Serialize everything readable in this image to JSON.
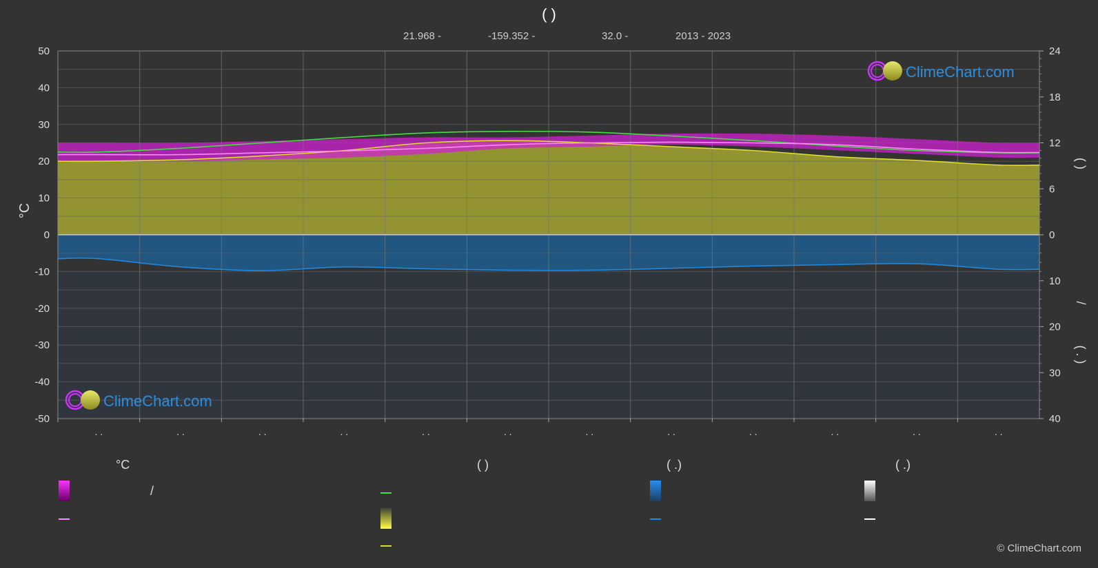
{
  "header": {
    "title": "(        )",
    "lat": "21.968 -",
    "lon": "-159.352 -",
    "elev": "32.0 -",
    "years": "2013 - 2023"
  },
  "brand": {
    "logo_text": "ClimeChart.com",
    "copyright": "© ClimeChart.com"
  },
  "legend": {
    "temp_header": "°C",
    "sun_header": "(          )",
    "rain_header": "(    .)",
    "snow_header": "(    .)",
    "temp_range_slash": "/"
  },
  "colors": {
    "background": "#333333",
    "daylight_green": "#44dd44",
    "sunshine_yellow": "#dddd33",
    "sunshine_fill": "#999933",
    "temp_range_magenta": "#d020d0",
    "temp_mean_pink": "#ff88ff",
    "rain_blue": "#2288dd",
    "snow_white": "#ffffff"
  },
  "chart_data": {
    "type": "area",
    "x_categories": [
      ". .",
      ". .",
      ". .",
      ". .",
      ". .",
      ". .",
      ". .",
      ". .",
      ". .",
      ". .",
      ". .",
      ". ."
    ],
    "left_axis": {
      "label": "°C",
      "ylim": [
        -50,
        50
      ],
      "ticks": [
        50,
        40,
        30,
        20,
        10,
        0,
        -10,
        -20,
        -30,
        -40,
        -50
      ]
    },
    "right_axis_top": {
      "ylim": [
        0,
        24
      ],
      "ticks": [
        24,
        18,
        12,
        6,
        0
      ],
      "label": "(     )"
    },
    "right_axis_bottom": {
      "ylim": [
        0,
        40
      ],
      "ticks": [
        0,
        10,
        20,
        30,
        40
      ],
      "label": "(  .  )",
      "sublabel": "/"
    },
    "grid": true,
    "series": [
      {
        "id": "temp_max",
        "values": [
          25,
          25,
          25.5,
          26,
          26.5,
          26.5,
          27,
          27.5,
          27.5,
          27,
          26,
          25
        ]
      },
      {
        "id": "temp_min",
        "values": [
          20,
          20,
          20.5,
          21,
          22,
          23.5,
          24,
          24.5,
          24,
          23,
          22,
          21
        ]
      },
      {
        "id": "temp_mean",
        "values": [
          21.8,
          21.8,
          22.3,
          22.8,
          23.5,
          24.5,
          25.0,
          25.2,
          25.0,
          24.5,
          23.3,
          22.4
        ]
      },
      {
        "id": "daylight_hours",
        "values": [
          10.8,
          11.3,
          12.0,
          12.7,
          13.3,
          13.5,
          13.4,
          12.9,
          12.3,
          11.6,
          11.0,
          10.7
        ]
      },
      {
        "id": "sunshine_hours",
        "values": [
          9.6,
          9.8,
          10.3,
          11.0,
          12.0,
          12.3,
          12.0,
          11.5,
          11.0,
          10.2,
          9.7,
          9.1
        ]
      },
      {
        "id": "rain_mm_daily",
        "values": [
          5.2,
          7.0,
          7.8,
          7.0,
          7.4,
          7.7,
          7.7,
          7.3,
          6.8,
          6.5,
          6.3,
          7.5
        ]
      }
    ]
  }
}
